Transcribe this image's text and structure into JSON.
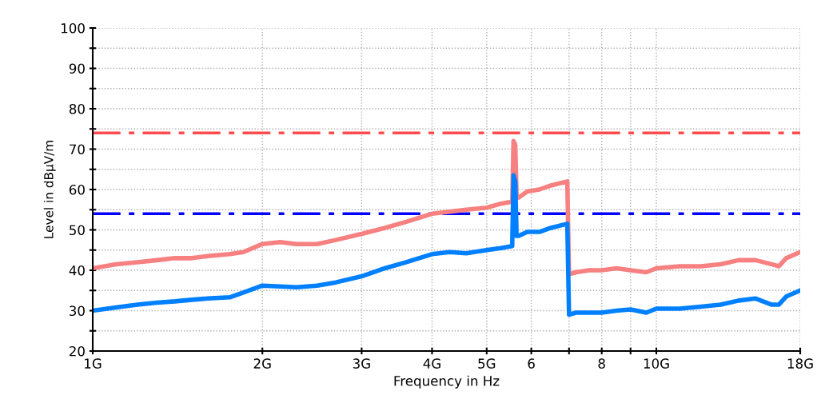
{
  "chart_data": {
    "type": "line",
    "xlabel": "Frequency in Hz",
    "ylabel": "Level in dBµV/m",
    "log": "x",
    "xlim": [
      1,
      18
    ],
    "ylim": [
      20,
      100
    ],
    "xticks": [
      {
        "value": 1,
        "label": "1G"
      },
      {
        "value": 2,
        "label": "2G"
      },
      {
        "value": 3,
        "label": "3G"
      },
      {
        "value": 4,
        "label": "4G"
      },
      {
        "value": 5,
        "label": "5G"
      },
      6,
      {
        "value": 7,
        "label": null
      },
      8,
      {
        "value": 9,
        "label": null
      },
      {
        "value": 10,
        "label": "10G"
      },
      {
        "value": 18,
        "label": "18G"
      }
    ],
    "yticks": [
      20,
      {
        "value": 25,
        "label": null
      },
      30,
      {
        "value": 35,
        "label": null
      },
      40,
      {
        "value": 45,
        "label": null
      },
      50,
      {
        "value": 55,
        "label": null
      },
      60,
      {
        "value": 65,
        "label": null
      },
      70,
      {
        "value": 75,
        "label": null
      },
      80,
      {
        "value": 85,
        "label": null
      },
      90,
      {
        "value": 95,
        "label": null
      },
      100
    ],
    "grid": true,
    "marker": "none",
    "line_style": "solid",
    "series": [
      {
        "color": "#f78080",
        "x": [
          1,
          1.1,
          1.2,
          1.3,
          1.4,
          1.5,
          1.6,
          1.75,
          1.85,
          2,
          2.15,
          2.3,
          2.5,
          2.7,
          3,
          3.3,
          3.6,
          4,
          4.3,
          4.6,
          5,
          5.3,
          5.55,
          5.58,
          5.62,
          5.65,
          5.7,
          5.9,
          6.2,
          6.5,
          6.95,
          7,
          7.2,
          7.6,
          8,
          8.5,
          9,
          9.6,
          10,
          11,
          12,
          13,
          14,
          15,
          16,
          16.5,
          17,
          18
        ],
        "values": [
          40.5,
          41.5,
          42,
          42.5,
          43,
          43,
          43.5,
          44,
          44.5,
          46.5,
          47,
          46.5,
          46.5,
          47.5,
          49,
          50.5,
          52,
          54,
          54.5,
          55,
          55.5,
          56.5,
          57,
          72,
          71,
          58.5,
          58,
          59.5,
          60,
          61,
          62,
          39,
          39.5,
          40,
          40,
          40.5,
          40,
          39.5,
          40.5,
          41,
          41,
          41.5,
          42.5,
          42.5,
          41.5,
          41,
          43,
          44.5
        ]
      },
      {
        "color": "#0080ff",
        "x": [
          1,
          1.1,
          1.2,
          1.3,
          1.4,
          1.5,
          1.6,
          1.75,
          1.85,
          2,
          2.15,
          2.3,
          2.5,
          2.7,
          3,
          3.3,
          3.6,
          4,
          4.3,
          4.6,
          5,
          5.3,
          5.55,
          5.58,
          5.62,
          5.65,
          5.7,
          5.9,
          6.2,
          6.5,
          6.95,
          7,
          7.2,
          7.6,
          8,
          8.5,
          9,
          9.6,
          10,
          11,
          12,
          13,
          14,
          15,
          16,
          16.5,
          17,
          18
        ],
        "values": [
          30,
          30.8,
          31.5,
          32,
          32.3,
          32.7,
          33,
          33.3,
          34.5,
          36.2,
          36,
          35.8,
          36.2,
          37,
          38.5,
          40.5,
          42,
          44,
          44.5,
          44.2,
          45,
          45.5,
          46,
          63.5,
          62,
          48.5,
          48.5,
          49.5,
          49.5,
          50.5,
          51.5,
          29,
          29.5,
          29.5,
          29.5,
          30,
          30.3,
          29.5,
          30.5,
          30.5,
          31,
          31.5,
          32.5,
          33,
          31.5,
          31.5,
          33.5,
          35
        ]
      }
    ],
    "ref_lines": [
      {
        "axis": "y",
        "value": 74,
        "color": "#ff4b4b",
        "line_style": "dashed"
      },
      {
        "axis": "y",
        "value": 54,
        "color": "#0000ff",
        "line_style": "dashed"
      }
    ]
  }
}
